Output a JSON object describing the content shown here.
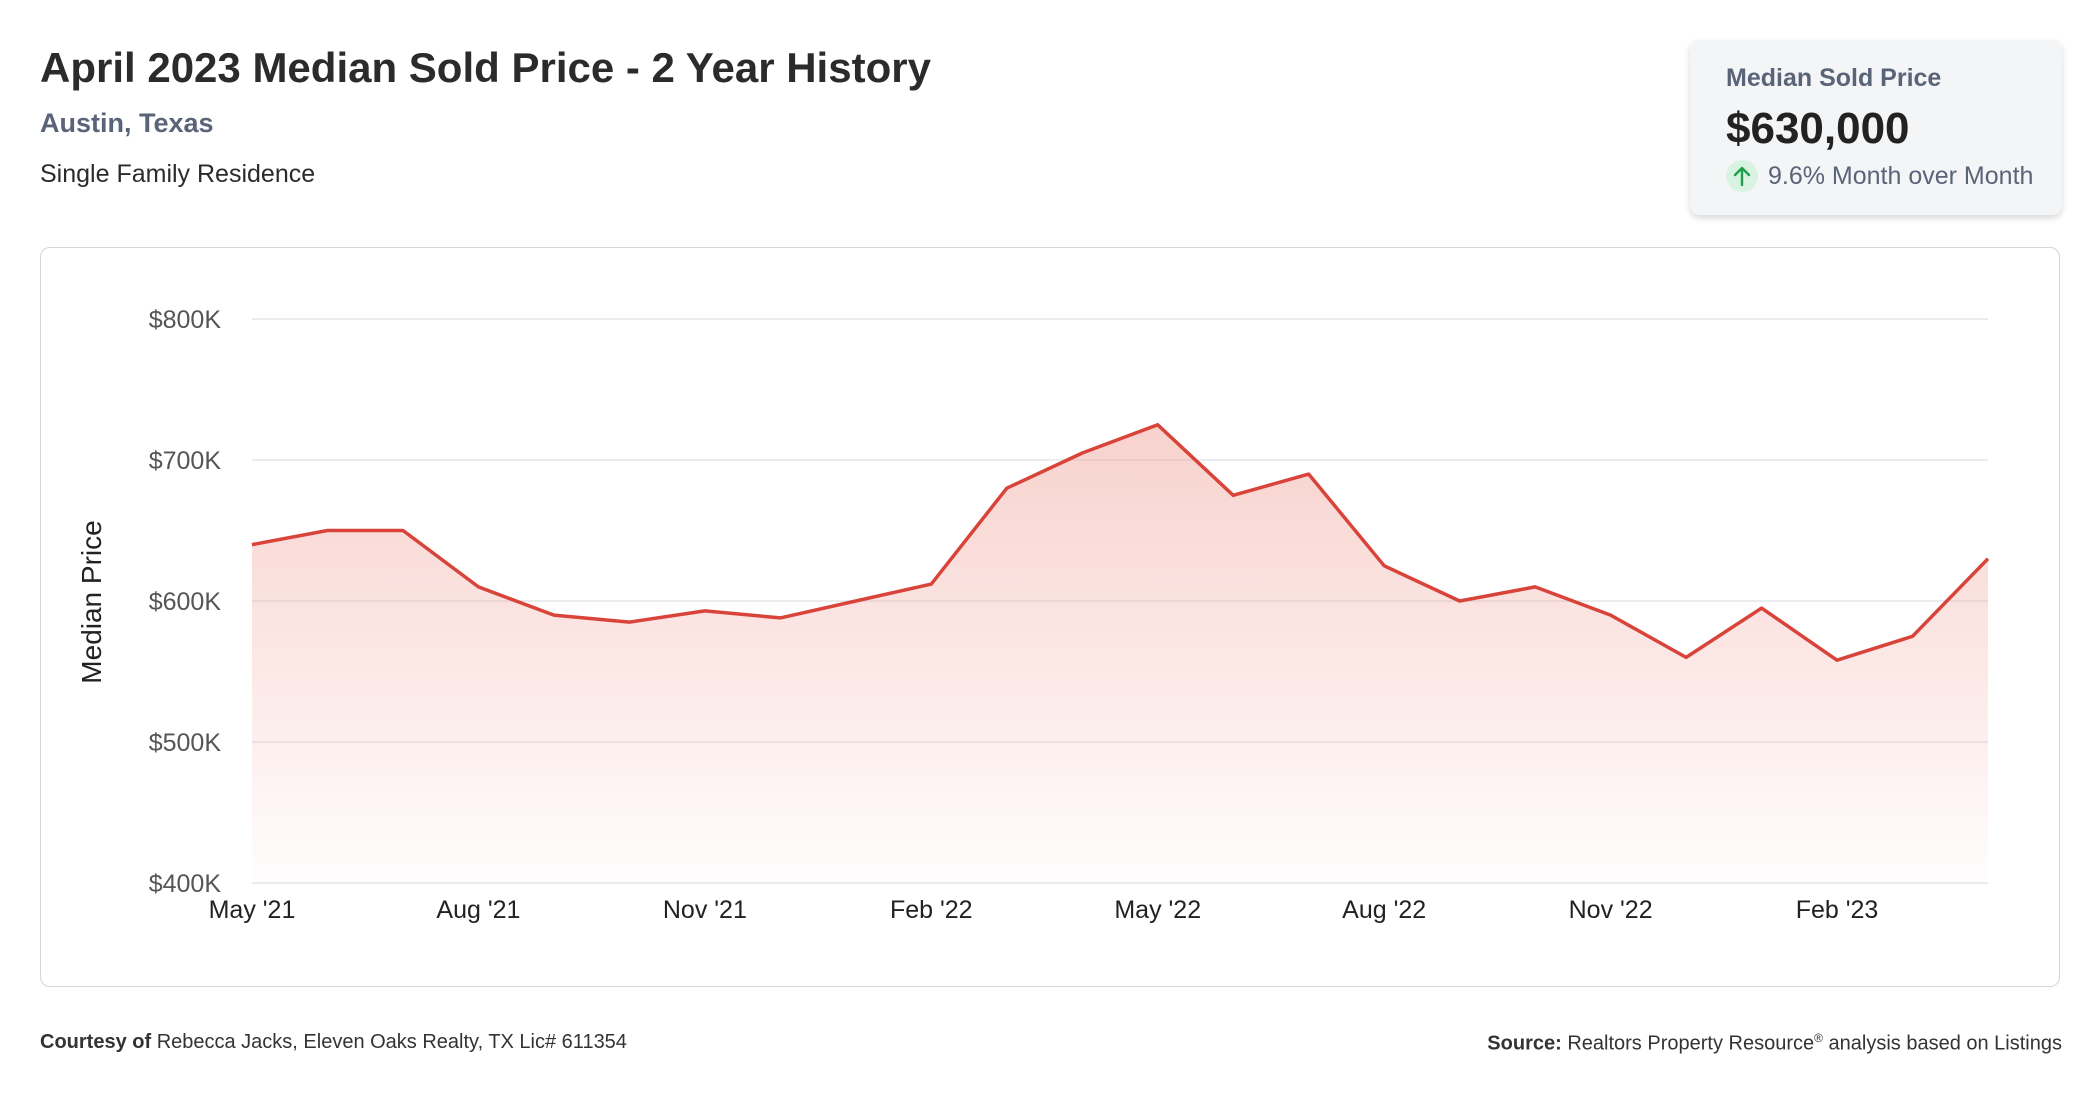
{
  "header": {
    "title": "April 2023 Median Sold Price - 2 Year History",
    "location": "Austin, Texas",
    "property_type": "Single Family Residence"
  },
  "kpi": {
    "label": "Median Sold Price",
    "value": "$630,000",
    "change": "9.6% Month over Month",
    "icon": "arrow-up-icon",
    "positive_color": "#1e9e4a"
  },
  "chart_data": {
    "type": "area",
    "ylabel": "Median Price",
    "ylim": [
      400000,
      800000
    ],
    "y_ticks": [
      400000,
      500000,
      600000,
      700000,
      800000
    ],
    "y_tick_labels": [
      "$400K",
      "$500K",
      "$600K",
      "$700K",
      "$800K"
    ],
    "x_tick_labels": [
      "May '21",
      "Aug '21",
      "Nov '21",
      "Feb '22",
      "May '22",
      "Aug '22",
      "Nov '22",
      "Feb '23"
    ],
    "x_tick_every": 3,
    "grid": true,
    "line_color": "#d9443a",
    "series": [
      {
        "x": [
          "May '21",
          "Jun '21",
          "Jul '21",
          "Aug '21",
          "Sep '21",
          "Oct '21",
          "Nov '21",
          "Dec '21",
          "Jan '22",
          "Feb '22",
          "Mar '22",
          "Apr '22",
          "May '22",
          "Jun '22",
          "Jul '22",
          "Aug '22",
          "Sep '22",
          "Oct '22",
          "Nov '22",
          "Dec '22",
          "Jan '23",
          "Feb '23",
          "Mar '23",
          "Apr '23"
        ],
        "values": [
          640000,
          650000,
          650000,
          610000,
          590000,
          585000,
          593000,
          588000,
          600000,
          612000,
          680000,
          705000,
          725000,
          675000,
          690000,
          625000,
          600000,
          610000,
          590000,
          560000,
          595000,
          558000,
          575000,
          630000
        ]
      }
    ]
  },
  "footer": {
    "courtesy_label": "Courtesy of",
    "courtesy_text": "Rebecca Jacks, Eleven Oaks Realty, TX Lic# 611354",
    "source_label": "Source:",
    "source_text": "Realtors Property Resource",
    "source_reg": "®",
    "source_suffix": "analysis based on Listings"
  }
}
